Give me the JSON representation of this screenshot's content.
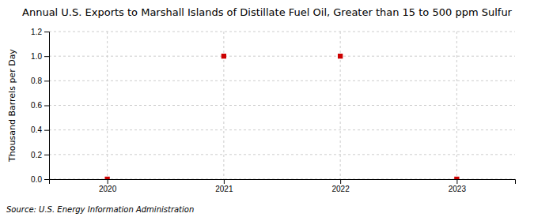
{
  "chart_data": {
    "type": "scatter",
    "title": "Annual U.S. Exports to Marshall Islands of Distillate Fuel Oil, Greater than 15 to 500 ppm Sulfur",
    "ylabel": "Thousand Barrels per Day",
    "source": "Source: U.S. Energy Information Administration",
    "x": [
      2020,
      2021,
      2022,
      2023
    ],
    "values": [
      0.0,
      1.0,
      1.0,
      0.0
    ],
    "color": "#cc0000",
    "marker": "square",
    "xlim": [
      2019.5,
      2023.5
    ],
    "xticks": [
      2020,
      2021,
      2022,
      2023
    ],
    "ylim": [
      0.0,
      1.2
    ],
    "yticks": [
      {
        "value": 0,
        "label": "0.0"
      },
      0.2,
      0.4,
      0.6,
      0.8,
      {
        "value": 1,
        "label": "1.0"
      },
      1.2
    ],
    "grid": true
  }
}
